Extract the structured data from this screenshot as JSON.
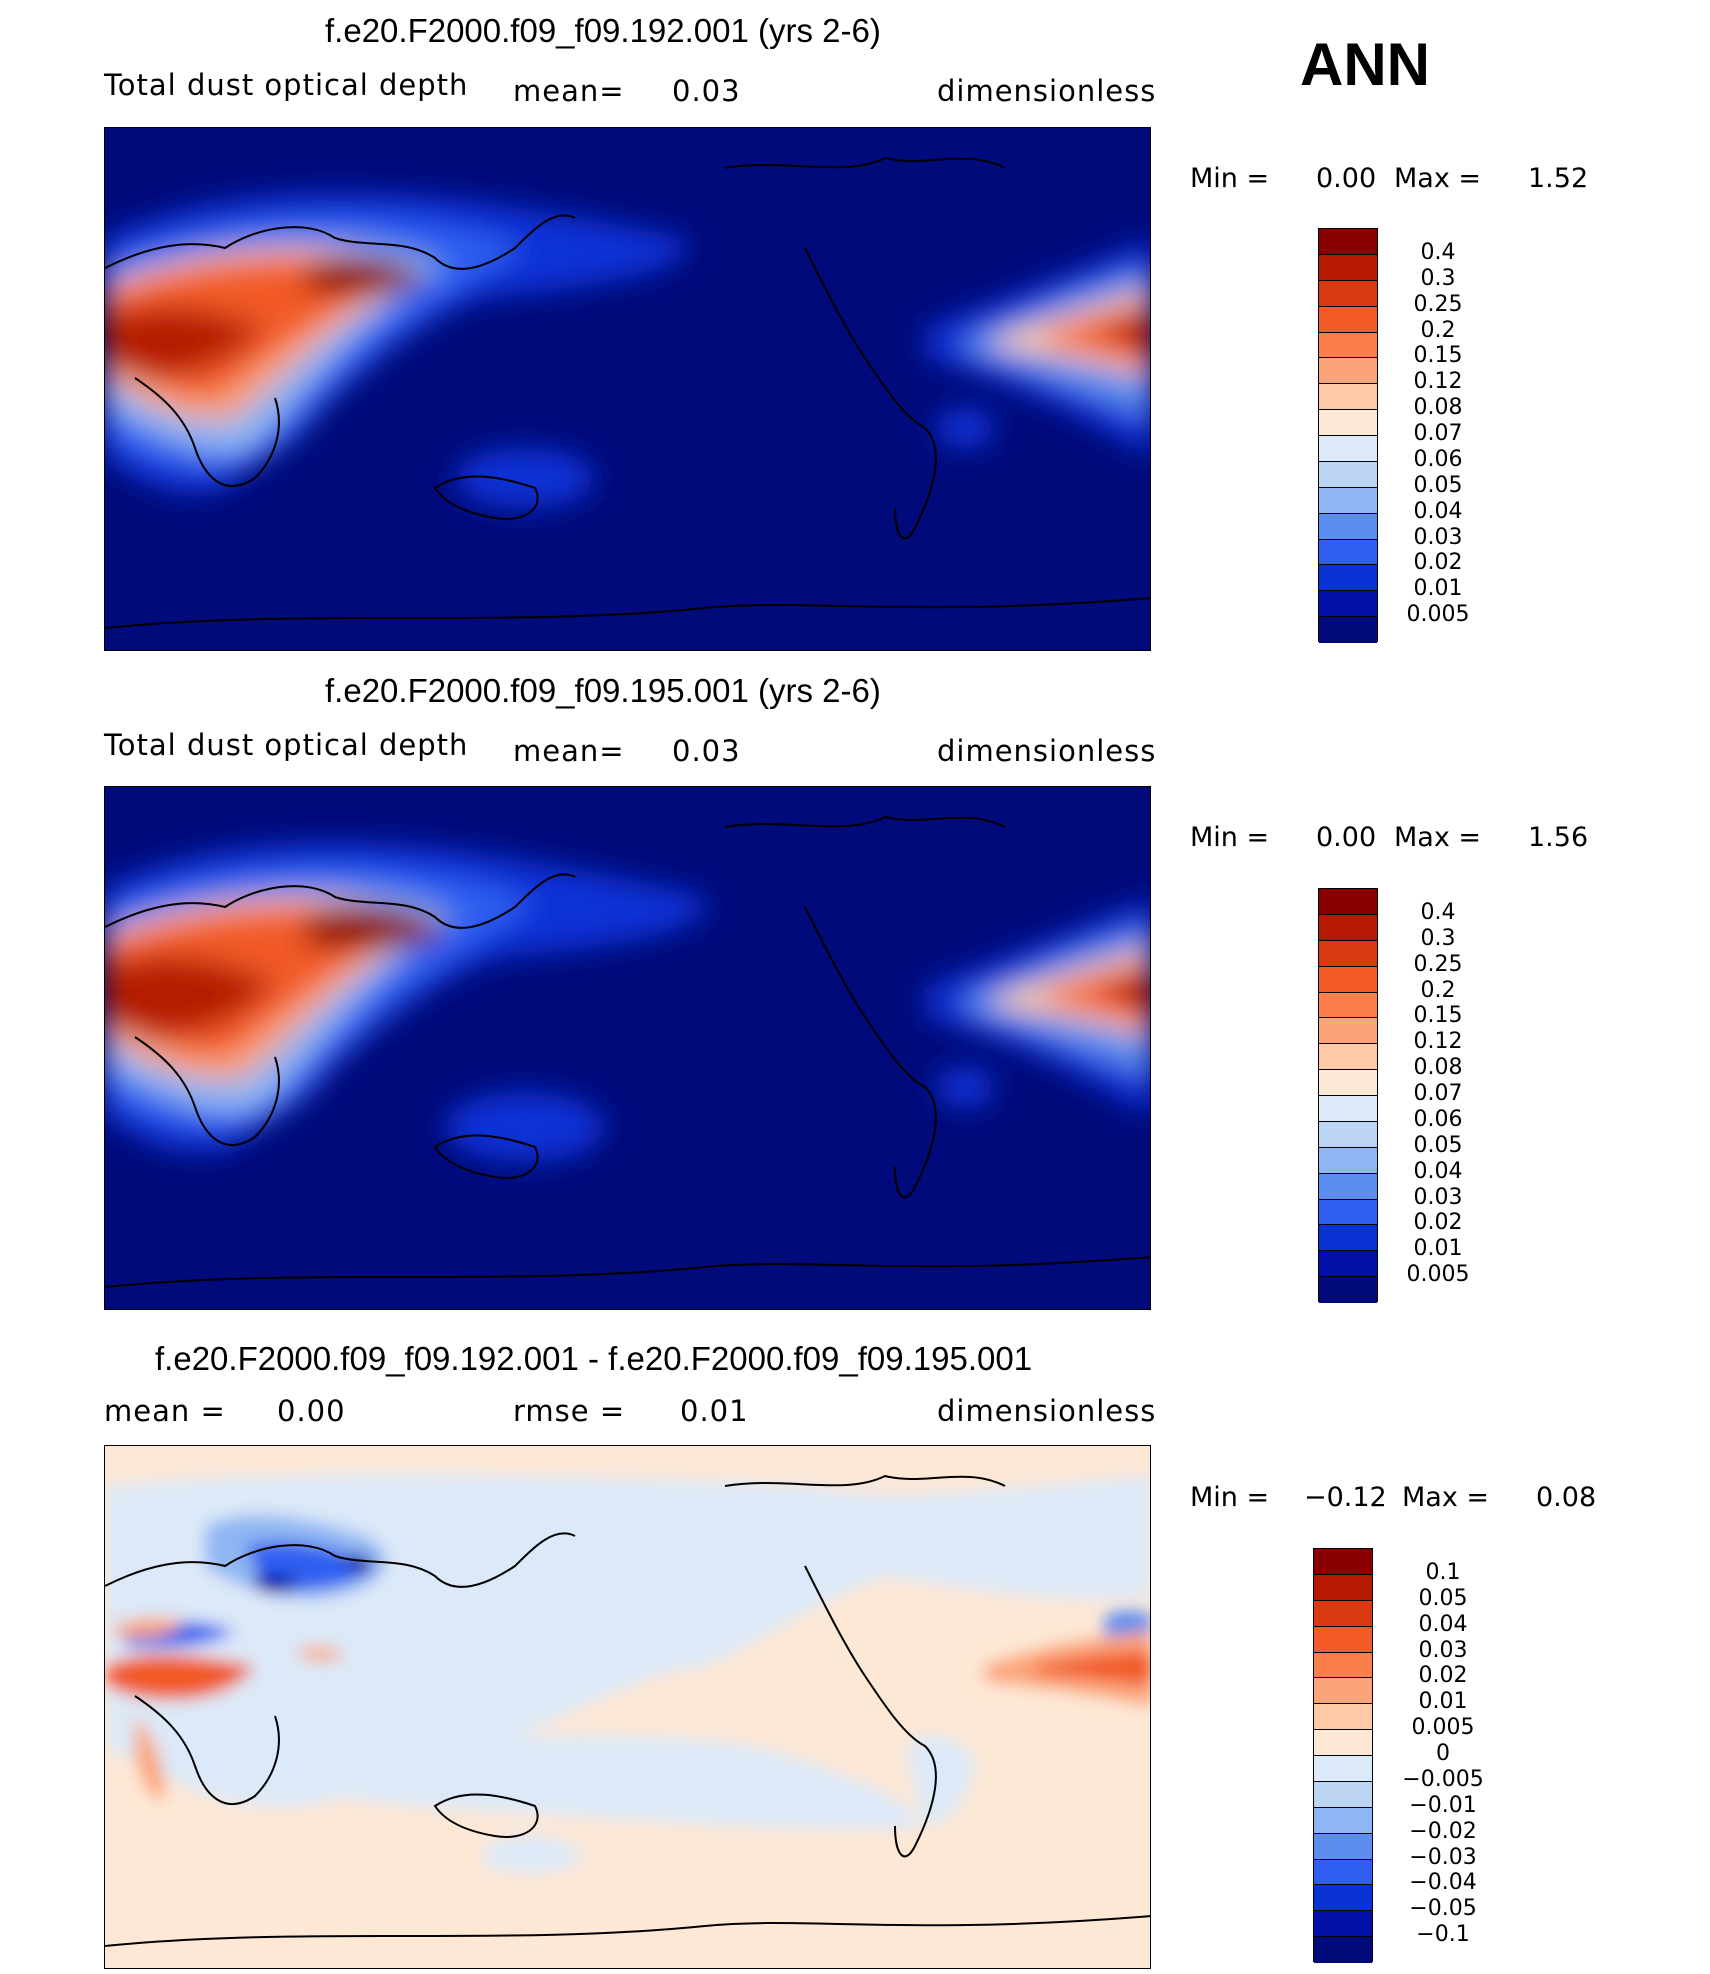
{
  "season": "ANN",
  "panels": [
    {
      "title": "f.e20.F2000.f09_f09.192.001 (yrs 2-6)",
      "variable": "Total dust optical depth",
      "stat1_label": "mean=",
      "stat1_value": "0.03",
      "units": "dimensionless",
      "min_label": "Min =",
      "min_value": "0.00",
      "max_label": "Max =",
      "max_value": "1.52"
    },
    {
      "title": "f.e20.F2000.f09_f09.195.001 (yrs 2-6)",
      "variable": "Total dust optical depth",
      "stat1_label": "mean=",
      "stat1_value": "0.03",
      "units": "dimensionless",
      "min_label": "Min =",
      "min_value": "0.00",
      "max_label": "Max =",
      "max_value": "1.56"
    },
    {
      "title": "f.e20.F2000.f09_f09.192.001 - f.e20.F2000.f09_f09.195.001",
      "stat1_label": "mean =",
      "stat1_value": "0.00",
      "stat2_label": "rmse =",
      "stat2_value": "0.01",
      "units": "dimensionless",
      "min_label": "Min =",
      "min_value": "−0.12",
      "max_label": "Max =",
      "max_value": "0.08"
    }
  ],
  "chart_data": [
    {
      "type": "heatmap",
      "title": "f.e20.F2000.f09_f09.192.001 (yrs 2-6)",
      "subtitle": "Total dust optical depth",
      "mean": 0.03,
      "min": 0.0,
      "max": 1.52,
      "units": "dimensionless",
      "colorbar_levels": [
        "0.4",
        "0.3",
        "0.25",
        "0.2",
        "0.15",
        "0.12",
        "0.08",
        "0.07",
        "0.06",
        "0.05",
        "0.04",
        "0.03",
        "0.02",
        "0.01",
        "0.005"
      ],
      "colorbar_colors": [
        "#8a0000",
        "#b51a00",
        "#d93a10",
        "#f25a28",
        "#fa7f48",
        "#fba47a",
        "#fdc9a6",
        "#fde8d6",
        "#dce9f8",
        "#bdd5f5",
        "#8fb6f2",
        "#5b8ef0",
        "#2f5ef0",
        "#0a33d6",
        "#0010a8",
        "#000a7a"
      ]
    },
    {
      "type": "heatmap",
      "title": "f.e20.F2000.f09_f09.195.001 (yrs 2-6)",
      "subtitle": "Total dust optical depth",
      "mean": 0.03,
      "min": 0.0,
      "max": 1.56,
      "units": "dimensionless",
      "colorbar_levels": [
        "0.4",
        "0.3",
        "0.25",
        "0.2",
        "0.15",
        "0.12",
        "0.08",
        "0.07",
        "0.06",
        "0.05",
        "0.04",
        "0.03",
        "0.02",
        "0.01",
        "0.005"
      ],
      "colorbar_colors": [
        "#8a0000",
        "#b51a00",
        "#d93a10",
        "#f25a28",
        "#fa7f48",
        "#fba47a",
        "#fdc9a6",
        "#fde8d6",
        "#dce9f8",
        "#bdd5f5",
        "#8fb6f2",
        "#5b8ef0",
        "#2f5ef0",
        "#0a33d6",
        "#0010a8",
        "#000a7a"
      ]
    },
    {
      "type": "heatmap",
      "title": "f.e20.F2000.f09_f09.192.001 - f.e20.F2000.f09_f09.195.001",
      "mean": 0.0,
      "rmse": 0.01,
      "min": -0.12,
      "max": 0.08,
      "units": "dimensionless",
      "colorbar_levels": [
        "0.1",
        "0.05",
        "0.04",
        "0.03",
        "0.02",
        "0.01",
        "0.005",
        "0",
        "−0.005",
        "−0.01",
        "−0.02",
        "−0.03",
        "−0.04",
        "−0.05",
        "−0.1"
      ],
      "colorbar_colors": [
        "#8a0000",
        "#b51a00",
        "#d93a10",
        "#f25a28",
        "#fa7f48",
        "#fba47a",
        "#fdc9a6",
        "#fde8d6",
        "#dce9f8",
        "#bdd5f5",
        "#8fb6f2",
        "#5b8ef0",
        "#2f5ef0",
        "#0a33d6",
        "#0010a8",
        "#000a7a"
      ]
    }
  ]
}
